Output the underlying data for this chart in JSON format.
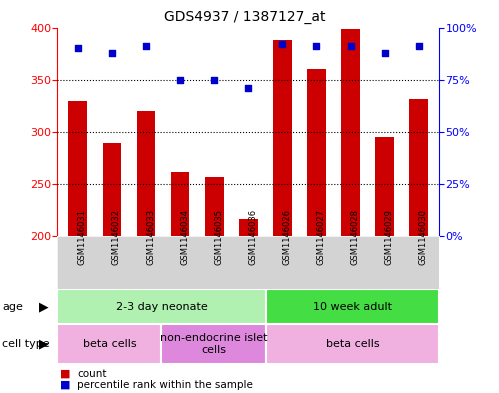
{
  "title": "GDS4937 / 1387127_at",
  "samples": [
    "GSM1146031",
    "GSM1146032",
    "GSM1146033",
    "GSM1146034",
    "GSM1146035",
    "GSM1146036",
    "GSM1146026",
    "GSM1146027",
    "GSM1146028",
    "GSM1146029",
    "GSM1146030"
  ],
  "counts": [
    329,
    289,
    320,
    261,
    256,
    216,
    388,
    360,
    399,
    295,
    331
  ],
  "percentiles": [
    90,
    88,
    91,
    75,
    75,
    71,
    92,
    91,
    91,
    88,
    91
  ],
  "ylim_left": [
    200,
    400
  ],
  "ylim_right": [
    0,
    100
  ],
  "yticks_left": [
    200,
    250,
    300,
    350,
    400
  ],
  "yticks_right": [
    0,
    25,
    50,
    75,
    100
  ],
  "bar_color": "#cc0000",
  "dot_color": "#0000cc",
  "grid_color": "black",
  "age_groups": [
    {
      "label": "2-3 day neonate",
      "start": 0,
      "end": 6,
      "color": "#b0f0b0"
    },
    {
      "label": "10 week adult",
      "start": 6,
      "end": 11,
      "color": "#44dd44"
    }
  ],
  "cell_type_groups": [
    {
      "label": "beta cells",
      "start": 0,
      "end": 3,
      "color": "#f0b0e0"
    },
    {
      "label": "non-endocrine islet\ncells",
      "start": 3,
      "end": 6,
      "color": "#dd88dd"
    },
    {
      "label": "beta cells",
      "start": 6,
      "end": 11,
      "color": "#f0b0e0"
    }
  ],
  "legend_items": [
    {
      "color": "#cc0000",
      "label": "count"
    },
    {
      "color": "#0000cc",
      "label": "percentile rank within the sample"
    }
  ],
  "background_color": "#ffffff",
  "plot_bg_color": "#ffffff",
  "sample_bg_color": "#d3d3d3"
}
